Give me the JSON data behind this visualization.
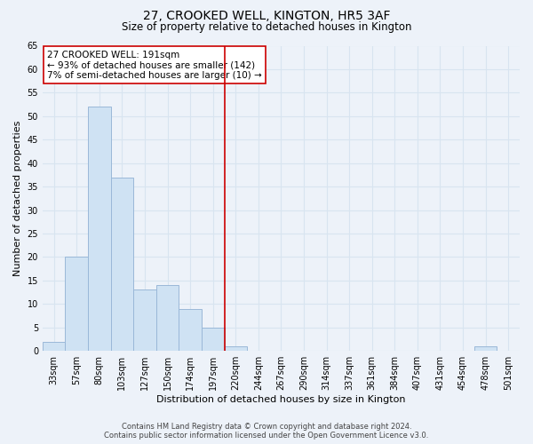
{
  "title": "27, CROOKED WELL, KINGTON, HR5 3AF",
  "subtitle": "Size of property relative to detached houses in Kington",
  "xlabel": "Distribution of detached houses by size in Kington",
  "ylabel": "Number of detached properties",
  "bar_labels": [
    "33sqm",
    "57sqm",
    "80sqm",
    "103sqm",
    "127sqm",
    "150sqm",
    "174sqm",
    "197sqm",
    "220sqm",
    "244sqm",
    "267sqm",
    "290sqm",
    "314sqm",
    "337sqm",
    "361sqm",
    "384sqm",
    "407sqm",
    "431sqm",
    "454sqm",
    "478sqm",
    "501sqm"
  ],
  "bar_values": [
    2,
    20,
    52,
    37,
    13,
    14,
    9,
    5,
    1,
    0,
    0,
    0,
    0,
    0,
    0,
    0,
    0,
    0,
    0,
    1,
    0
  ],
  "bar_color": "#cfe2f3",
  "bar_edge_color": "#9ab8d8",
  "ylim": [
    0,
    65
  ],
  "yticks": [
    0,
    5,
    10,
    15,
    20,
    25,
    30,
    35,
    40,
    45,
    50,
    55,
    60,
    65
  ],
  "vline_color": "#cc0000",
  "annotation_title": "27 CROOKED WELL: 191sqm",
  "annotation_line1": "← 93% of detached houses are smaller (142)",
  "annotation_line2": "7% of semi-detached houses are larger (10) →",
  "annotation_box_color": "#ffffff",
  "annotation_box_edge": "#cc0000",
  "footer_line1": "Contains HM Land Registry data © Crown copyright and database right 2024.",
  "footer_line2": "Contains public sector information licensed under the Open Government Licence v3.0.",
  "background_color": "#edf2f9",
  "grid_color": "#d8e4f0",
  "title_fontsize": 10,
  "subtitle_fontsize": 8.5,
  "ylabel_text": "Number of detached properties",
  "axis_label_fontsize": 8,
  "tick_fontsize": 7,
  "annotation_fontsize": 7.5,
  "footer_fontsize": 6
}
